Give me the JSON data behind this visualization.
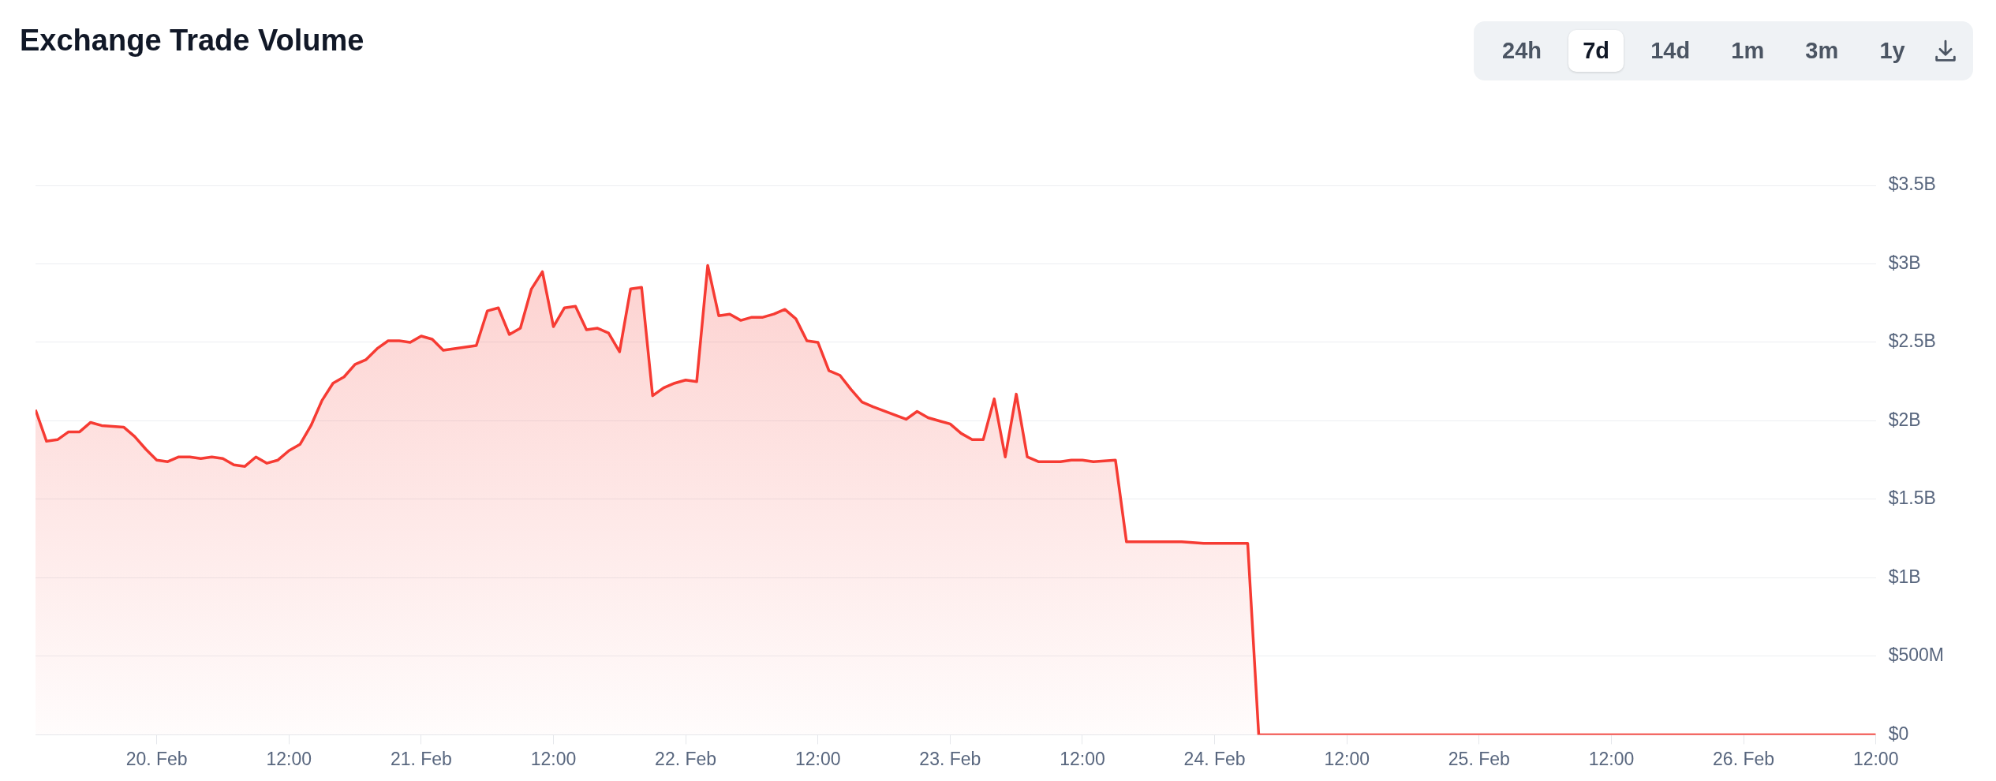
{
  "chart_data": {
    "type": "area",
    "title": "Exchange Trade Volume",
    "annotations": [
      "24h",
      "7d",
      "14d",
      "1m",
      "3m",
      "1y"
    ],
    "x": [
      "--02-19T13:00",
      "--02-19T14:00",
      "--02-19T15:00",
      "--02-19T16:00",
      "--02-19T17:00",
      "--02-19T18:00",
      "--02-19T19:00",
      "--02-19T21:00",
      "--02-19T22:00",
      "--02-19T23:00",
      "--02-20T00:00",
      "--02-20T01:00",
      "--02-20T02:00",
      "--02-20T03:00",
      "--02-20T04:00",
      "--02-20T05:00",
      "--02-20T06:00",
      "--02-20T07:00",
      "--02-20T08:00",
      "--02-20T09:00",
      "--02-20T10:00",
      "--02-20T11:00",
      "--02-20T12:00",
      "--02-20T13:00",
      "--02-20T14:00",
      "--02-20T15:00",
      "--02-20T16:00",
      "--02-20T17:00",
      "--02-20T18:00",
      "--02-20T19:00",
      "--02-20T20:00",
      "--02-20T21:00",
      "--02-20T22:00",
      "--02-20T23:00",
      "--02-21T00:00",
      "--02-21T01:00",
      "--02-21T02:00",
      "--02-21T03:00",
      "--02-21T05:00",
      "--02-21T06:00",
      "--02-21T07:00",
      "--02-21T08:00",
      "--02-21T09:00",
      "--02-21T10:00",
      "--02-21T11:00",
      "--02-21T12:00",
      "--02-21T13:00",
      "--02-21T14:00",
      "--02-21T15:00",
      "--02-21T16:00",
      "--02-21T17:00",
      "--02-21T18:00",
      "--02-21T19:00",
      "--02-21T20:00",
      "--02-21T21:00",
      "--02-21T22:00",
      "--02-21T23:00",
      "--02-22T00:00",
      "--02-22T01:00",
      "--02-22T02:00",
      "--02-22T03:00",
      "--02-22T04:00",
      "--02-22T05:00",
      "--02-22T06:00",
      "--02-22T07:00",
      "--02-22T08:00",
      "--02-22T09:00",
      "--02-22T10:00",
      "--02-22T11:00",
      "--02-22T12:00",
      "--02-22T13:00",
      "--02-22T14:00",
      "--02-22T15:00",
      "--02-22T16:00",
      "--02-22T17:00",
      "--02-22T20:00",
      "--02-22T21:00",
      "--02-22T22:00",
      "--02-22T23:00",
      "--02-23T00:00",
      "--02-23T01:00",
      "--02-23T02:00",
      "--02-23T03:00",
      "--02-23T04:00",
      "--02-23T05:00",
      "--02-23T06:00",
      "--02-23T07:00",
      "--02-23T08:00",
      "--02-23T10:00",
      "--02-23T11:00",
      "--02-23T12:00",
      "--02-23T13:00",
      "--02-23T15:00",
      "--02-23T16:00",
      "--02-23T18:00",
      "--02-23T21:00",
      "--02-23T23:00",
      "--02-24T01:00",
      "--02-24T02:00",
      "--02-24T03:00",
      "--02-24T04:00",
      "--02-24T12:00",
      "--02-25T00:00",
      "--02-25T12:00",
      "--02-26T00:00",
      "--02-26T12:00"
    ],
    "series": [
      {
        "color": "#f63b33",
        "values": [
          2070000000,
          1870000000,
          1880000000,
          1930000000,
          1930000000,
          1990000000,
          1970000000,
          1960000000,
          1900000000,
          1820000000,
          1750000000,
          1740000000,
          1770000000,
          1770000000,
          1760000000,
          1770000000,
          1760000000,
          1720000000,
          1710000000,
          1770000000,
          1730000000,
          1750000000,
          1810000000,
          1850000000,
          1970000000,
          2130000000,
          2240000000,
          2280000000,
          2360000000,
          2390000000,
          2460000000,
          2510000000,
          2510000000,
          2500000000,
          2540000000,
          2520000000,
          2450000000,
          2460000000,
          2480000000,
          2700000000,
          2720000000,
          2550000000,
          2590000000,
          2840000000,
          2950000000,
          2600000000,
          2720000000,
          2730000000,
          2580000000,
          2590000000,
          2560000000,
          2440000000,
          2840000000,
          2850000000,
          2160000000,
          2210000000,
          2240000000,
          2260000000,
          2250000000,
          2990000000,
          2670000000,
          2680000000,
          2640000000,
          2660000000,
          2660000000,
          2680000000,
          2710000000,
          2650000000,
          2510000000,
          2500000000,
          2320000000,
          2290000000,
          2200000000,
          2120000000,
          2090000000,
          2010000000,
          2060000000,
          2020000000,
          2000000000,
          1980000000,
          1920000000,
          1880000000,
          1880000000,
          2140000000,
          1770000000,
          2170000000,
          1770000000,
          1740000000,
          1740000000,
          1750000000,
          1750000000,
          1740000000,
          1750000000,
          1230000000,
          1230000000,
          1230000000,
          1220000000,
          1220000000,
          1220000000,
          1220000000,
          0,
          0,
          0,
          0,
          0,
          0
        ]
      }
    ],
    "xlim": [
      "--02-19T13:00",
      "--02-26T12:00"
    ],
    "xticks": [
      {
        "value": "--02-20T00:00",
        "label": "20. Feb"
      },
      {
        "value": "--02-20T12:00",
        "label": "12:00"
      },
      {
        "value": "--02-21T00:00",
        "label": "21. Feb"
      },
      {
        "value": "--02-21T12:00",
        "label": "12:00"
      },
      {
        "value": "--02-22T00:00",
        "label": "22. Feb"
      },
      {
        "value": "--02-22T12:00",
        "label": "12:00"
      },
      {
        "value": "--02-23T00:00",
        "label": "23. Feb"
      },
      {
        "value": "--02-23T12:00",
        "label": "12:00"
      },
      {
        "value": "--02-24T00:00",
        "label": "24. Feb"
      },
      {
        "value": "--02-24T12:00",
        "label": "12:00"
      },
      {
        "value": "--02-25T00:00",
        "label": "25. Feb"
      },
      {
        "value": "--02-25T12:00",
        "label": "12:00"
      },
      {
        "value": "--02-26T00:00",
        "label": "26. Feb"
      },
      {
        "value": "--02-26T12:00",
        "label": "12:00"
      }
    ],
    "ylim": [
      0,
      3500000000
    ],
    "yticks": [
      {
        "value": 0,
        "label": "$0"
      },
      {
        "value": 500000000,
        "label": "$500M"
      },
      {
        "value": 1000000000,
        "label": "$1B"
      },
      {
        "value": 1500000000,
        "label": "$1.5B"
      },
      {
        "value": 2000000000,
        "label": "$2B"
      },
      {
        "value": 2500000000,
        "label": "$2.5B"
      },
      {
        "value": 3000000000,
        "label": "$3B"
      },
      {
        "value": 3500000000,
        "label": "$3.5B"
      }
    ],
    "grid": "y",
    "legend": false,
    "marker": "none",
    "line_style": "solid"
  }
}
